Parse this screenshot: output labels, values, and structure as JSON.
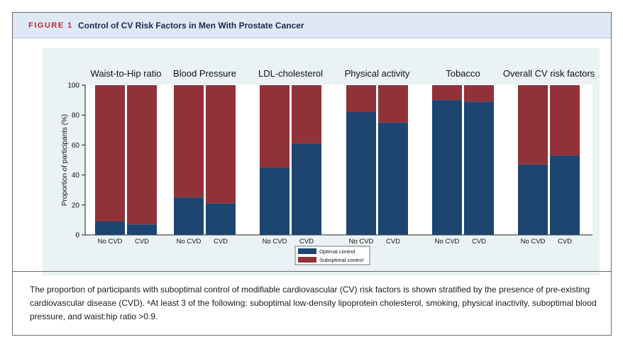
{
  "figure": {
    "label": "FIGURE 1",
    "title": "Control of CV Risk Factors in Men With Prostate Cancer"
  },
  "caption": "The proportion of participants with suboptimal control of modifiable cardiovascular (CV) risk factors is shown stratified by the presence of pre-existing cardiovascular disease (CVD). ᵃAt least 3 of the following: suboptimal low-density lipoprotein cholesterol, smoking, physical inactivity, suboptimal blood pressure, and waist:hip ratio >0.9.",
  "colors": {
    "optimal": "#1e4470",
    "suboptimal": "#913238",
    "panel_bg": "#eaf2f3",
    "plot_bg": "#ffffff"
  },
  "chart_data": {
    "type": "bar",
    "stacked": true,
    "ylabel": "Proportion of participants (%)",
    "ylim": [
      0,
      100
    ],
    "yticks": [
      0,
      20,
      40,
      60,
      80,
      100
    ],
    "legend_position": "bottom-center",
    "series_names": [
      "Optimal control",
      "Suboptimal control"
    ],
    "panels": [
      {
        "title": "Waist-to-Hip ratio",
        "categories": [
          "No CVD",
          "CVD"
        ],
        "optimal": [
          9,
          7
        ],
        "suboptimal": [
          91,
          93
        ]
      },
      {
        "title": "Blood Pressure",
        "categories": [
          "No CVD",
          "CVD"
        ],
        "optimal": [
          25,
          21
        ],
        "suboptimal": [
          75,
          79
        ]
      },
      {
        "title": "LDL-cholesterol",
        "categories": [
          "No CVD",
          "CVD"
        ],
        "optimal": [
          45,
          61
        ],
        "suboptimal": [
          55,
          39
        ]
      },
      {
        "title": "Physical activity",
        "categories": [
          "No CVD",
          "CVD"
        ],
        "optimal": [
          82,
          75
        ],
        "suboptimal": [
          18,
          25
        ]
      },
      {
        "title": "Tobacco",
        "categories": [
          "No CVD",
          "CVD"
        ],
        "optimal": [
          90,
          89
        ],
        "suboptimal": [
          10,
          11
        ]
      },
      {
        "title": "Overall CV risk factors",
        "categories": [
          "No CVD",
          "CVD"
        ],
        "optimal": [
          47,
          53
        ],
        "suboptimal": [
          53,
          47
        ]
      }
    ]
  }
}
